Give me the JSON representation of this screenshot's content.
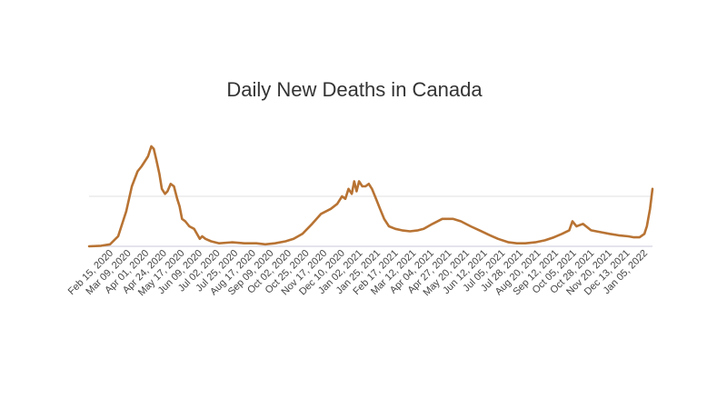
{
  "chart_data": {
    "type": "line",
    "title": "Daily New Deaths in Canada",
    "xlabel": "",
    "ylabel": "",
    "grid": true,
    "legend": "none",
    "colors": {
      "line": "#b87333",
      "grid": "#e0e0e0",
      "axis": "#c8c8d8"
    },
    "x_tick_labels": [
      "Feb 15, 2020",
      "Mar 09, 2020",
      "Apr 01, 2020",
      "Apr 24, 2020",
      "May 17, 2020",
      "Jun 09, 2020",
      "Jul 02, 2020",
      "Jul 25, 2020",
      "Aug 17, 2020",
      "Sep 09, 2020",
      "Oct 02, 2020",
      "Oct 25, 2020",
      "Nov 17, 2020",
      "Dec 10, 2020",
      "Jan 02, 2021",
      "Jan 25, 2021",
      "Feb 17, 2021",
      "Mar 12, 2021",
      "Apr 04, 2021",
      "Apr 27, 2021",
      "May 20, 2021",
      "Jun 12, 2021",
      "Jul 05, 2021",
      "Jul 28, 2021",
      "Aug 20, 2021",
      "Sep 12, 2021",
      "Oct 05, 2021",
      "Oct 28, 2021",
      "Nov 20, 2021",
      "Dec 13, 2021",
      "Jan 05, 2022"
    ],
    "ylim": [
      0,
      220
    ],
    "y_gridlines": [
      0,
      100
    ],
    "series": [
      {
        "x": [
          "2020-02-15",
          "2020-03-01",
          "2020-03-12",
          "2020-03-22",
          "2020-04-01",
          "2020-04-08",
          "2020-04-15",
          "2020-04-20",
          "2020-04-24",
          "2020-04-28",
          "2020-05-02",
          "2020-05-05",
          "2020-05-08",
          "2020-05-12",
          "2020-05-15",
          "2020-05-19",
          "2020-05-22",
          "2020-05-26",
          "2020-05-30",
          "2020-06-03",
          "2020-06-06",
          "2020-06-09",
          "2020-06-13",
          "2020-06-18",
          "2020-06-24",
          "2020-07-01",
          "2020-07-04",
          "2020-07-08",
          "2020-07-15",
          "2020-07-25",
          "2020-08-10",
          "2020-08-25",
          "2020-09-09",
          "2020-09-20",
          "2020-10-02",
          "2020-10-15",
          "2020-10-25",
          "2020-11-05",
          "2020-11-17",
          "2020-11-28",
          "2020-12-10",
          "2020-12-18",
          "2020-12-24",
          "2020-12-28",
          "2021-01-01",
          "2021-01-05",
          "2021-01-08",
          "2021-01-11",
          "2021-01-14",
          "2021-01-18",
          "2021-01-22",
          "2021-01-26",
          "2021-01-30",
          "2021-02-04",
          "2021-02-09",
          "2021-02-14",
          "2021-02-20",
          "2021-02-28",
          "2021-03-08",
          "2021-03-18",
          "2021-03-28",
          "2021-04-04",
          "2021-04-15",
          "2021-04-27",
          "2021-05-10",
          "2021-05-20",
          "2021-06-01",
          "2021-06-12",
          "2021-06-25",
          "2021-07-05",
          "2021-07-18",
          "2021-07-28",
          "2021-08-08",
          "2021-08-20",
          "2021-09-01",
          "2021-09-12",
          "2021-09-22",
          "2021-10-01",
          "2021-10-05",
          "2021-10-10",
          "2021-10-18",
          "2021-10-28",
          "2021-11-10",
          "2021-11-20",
          "2021-12-01",
          "2021-12-13",
          "2021-12-20",
          "2021-12-27",
          "2022-01-02",
          "2022-01-05",
          "2022-01-09",
          "2022-01-12"
        ],
        "y": [
          0,
          1,
          4,
          20,
          70,
          120,
          150,
          160,
          170,
          180,
          200,
          195,
          175,
          145,
          115,
          105,
          110,
          125,
          120,
          95,
          80,
          55,
          50,
          40,
          35,
          15,
          20,
          15,
          10,
          6,
          8,
          6,
          6,
          4,
          6,
          10,
          15,
          25,
          45,
          65,
          75,
          85,
          100,
          95,
          115,
          105,
          130,
          110,
          130,
          120,
          120,
          125,
          115,
          95,
          75,
          55,
          40,
          35,
          32,
          30,
          32,
          35,
          45,
          55,
          55,
          50,
          40,
          32,
          22,
          15,
          8,
          6,
          6,
          8,
          12,
          18,
          25,
          32,
          50,
          40,
          45,
          32,
          28,
          25,
          22,
          20,
          18,
          18,
          25,
          40,
          75,
          115
        ]
      }
    ]
  }
}
